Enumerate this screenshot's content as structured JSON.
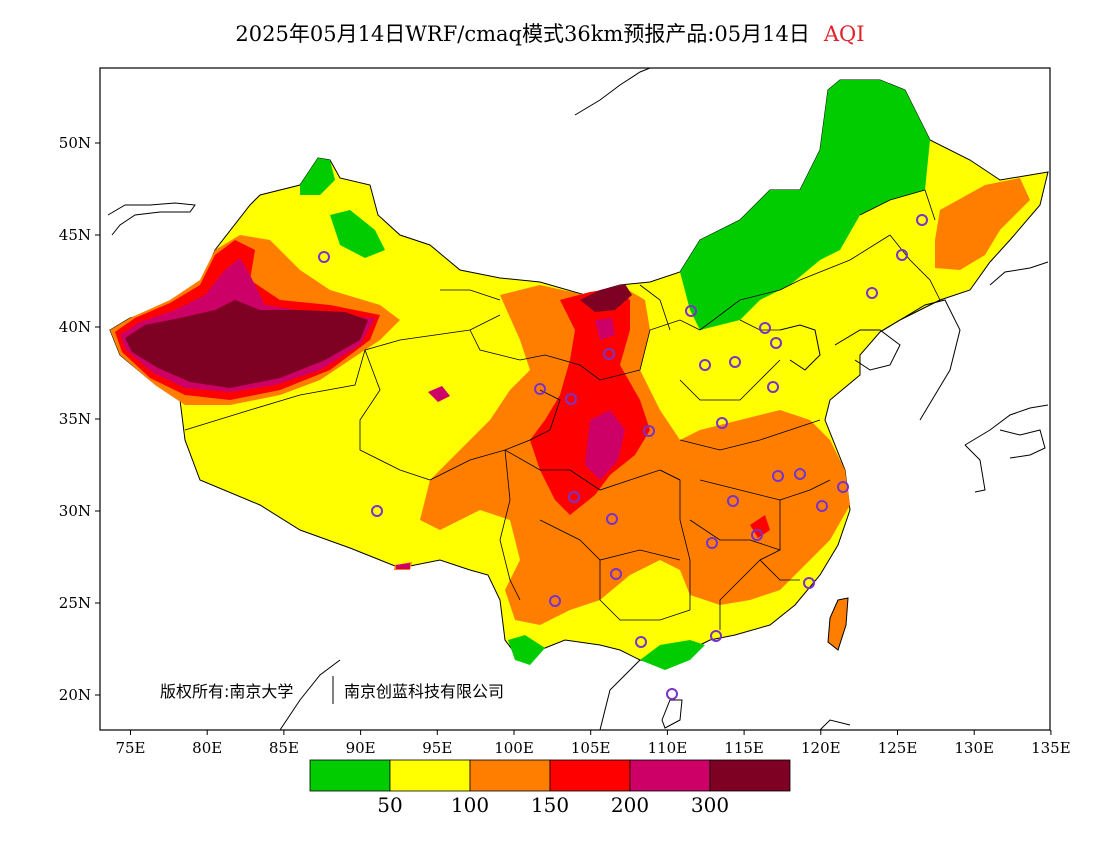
{
  "title": {
    "main": "2025年05月14日WRF/cmaq模式36km预报产品:05月14日",
    "variable": "AQI"
  },
  "axes": {
    "lon_ticks": [
      "75E",
      "80E",
      "85E",
      "90E",
      "95E",
      "100E",
      "105E",
      "110E",
      "115E",
      "120E",
      "125E",
      "130E",
      "135E"
    ],
    "lat_ticks": [
      "50N",
      "45N",
      "40N",
      "35N",
      "30N",
      "25N",
      "20N"
    ]
  },
  "copyright": {
    "part1": "版权所有:南京大学",
    "part2": "南京创蓝科技有限公司"
  },
  "colorbar": {
    "colors": [
      "#00cc00",
      "#ffff00",
      "#ff7e00",
      "#ff0000",
      "#cc0066",
      "#7e0023"
    ],
    "labels": [
      "50",
      "100",
      "150",
      "200",
      "300"
    ]
  }
}
